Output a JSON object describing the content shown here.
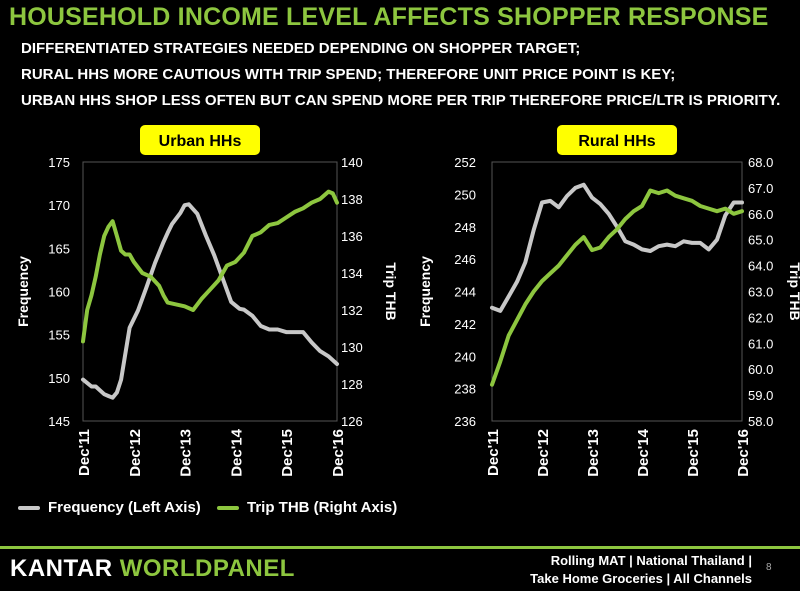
{
  "header": {
    "title": "HOUSEHOLD INCOME LEVEL AFFECTS SHOPPER RESPONSE",
    "lines": [
      "DIFFERENTIATED STRATEGIES NEEDED DEPENDING ON SHOPPER TARGET;",
      "RURAL HHS MORE CAUTIOUS WITH TRIP SPEND; THEREFORE UNIT PRICE POINT IS KEY;",
      "URBAN HHS SHOP LESS OFTEN BUT CAN SPEND MORE PER TRIP THEREFORE PRICE/LTR IS PRIORITY."
    ]
  },
  "colors": {
    "accent": "#8dc63f",
    "frequency": "#c8c8c8",
    "trip": "#8dc63f",
    "badge": "#ffff00"
  },
  "chart_data": [
    {
      "type": "line",
      "title": "Urban HHs",
      "ylabel": "Frequency",
      "y2label": "Trip THB",
      "ylim": [
        145,
        175
      ],
      "yticks": [
        "175",
        "170",
        "165",
        "160",
        "155",
        "150",
        "145"
      ],
      "y2lim": [
        126,
        140
      ],
      "y2ticks": [
        "140",
        "138",
        "136",
        "134",
        "132",
        "130",
        "128",
        "126"
      ],
      "xlim": [
        0,
        60
      ],
      "x_ticks": [
        "Dec'11",
        "Dec'12",
        "Dec'13",
        "Dec'14",
        "Dec'15",
        "Dec'16"
      ],
      "series": [
        {
          "name": "Frequency (Left Axis)",
          "axis": "left",
          "x": [
            0,
            2,
            3,
            5,
            6,
            7,
            8,
            9,
            11,
            13,
            15,
            17,
            19,
            20,
            21,
            23,
            24,
            25,
            27,
            29,
            31,
            33,
            35,
            37,
            38,
            40,
            42,
            44,
            46,
            48,
            50,
            52,
            54,
            56,
            58,
            60
          ],
          "values": [
            149.8,
            149.0,
            149.0,
            148.1,
            147.9,
            147.7,
            148.3,
            149.8,
            155.8,
            157.8,
            160.5,
            163.3,
            165.7,
            166.8,
            167.8,
            169.1,
            170.0,
            170.1,
            169.0,
            166.5,
            164.2,
            161.5,
            158.8,
            158.0,
            157.9,
            157.2,
            156.0,
            155.6,
            155.6,
            155.3,
            155.3,
            155.3,
            154.1,
            153.1,
            152.5,
            151.6
          ]
        },
        {
          "name": "Trip THB (Right Axis)",
          "axis": "right",
          "x": [
            0,
            1,
            2,
            3,
            4,
            5,
            6,
            7,
            8,
            9,
            10,
            11,
            12,
            14,
            16,
            18,
            19,
            20,
            22,
            24,
            26,
            28,
            30,
            32,
            34,
            36,
            38,
            40,
            42,
            44,
            46,
            48,
            50,
            52,
            54,
            56,
            58,
            59,
            60
          ],
          "values": [
            130.3,
            132.0,
            132.8,
            133.8,
            135.0,
            136.0,
            136.5,
            136.8,
            136.0,
            135.2,
            135.0,
            135.0,
            134.6,
            134.0,
            133.8,
            133.3,
            132.8,
            132.4,
            132.3,
            132.2,
            132.0,
            132.6,
            133.1,
            133.6,
            134.4,
            134.6,
            135.1,
            136.0,
            136.2,
            136.6,
            136.7,
            137.0,
            137.3,
            137.5,
            137.8,
            138.0,
            138.4,
            138.3,
            137.8
          ]
        }
      ]
    },
    {
      "type": "line",
      "title": "Rural HHs",
      "ylabel": "Frequency",
      "y2label": "Trip THB",
      "ylim": [
        236,
        252
      ],
      "yticks": [
        "252",
        "250",
        "248",
        "246",
        "244",
        "242",
        "240",
        "238",
        "236"
      ],
      "y2lim": [
        58.0,
        68.0
      ],
      "y2ticks": [
        "68.0",
        "67.0",
        "66.0",
        "65.0",
        "64.0",
        "63.0",
        "62.0",
        "61.0",
        "60.0",
        "59.0",
        "58.0"
      ],
      "xlim": [
        0,
        60
      ],
      "x_ticks": [
        "Dec'11",
        "Dec'12",
        "Dec'13",
        "Dec'14",
        "Dec'15",
        "Dec'16"
      ],
      "series": [
        {
          "name": "Frequency (Left Axis)",
          "axis": "left",
          "x": [
            0,
            2,
            4,
            6,
            8,
            10,
            12,
            14,
            16,
            18,
            20,
            22,
            24,
            26,
            28,
            30,
            32,
            34,
            36,
            38,
            40,
            42,
            44,
            46,
            48,
            50,
            52,
            54,
            56,
            58,
            60
          ],
          "values": [
            243.0,
            242.8,
            243.7,
            244.6,
            245.8,
            247.8,
            249.5,
            249.6,
            249.2,
            249.9,
            250.4,
            250.6,
            249.8,
            249.4,
            248.8,
            248.0,
            247.1,
            246.9,
            246.6,
            246.5,
            246.8,
            246.9,
            246.8,
            247.1,
            247.0,
            247.0,
            246.6,
            247.2,
            248.7,
            249.5,
            249.5
          ]
        },
        {
          "name": "Trip THB (Right Axis)",
          "axis": "right",
          "x": [
            0,
            2,
            4,
            6,
            8,
            10,
            12,
            14,
            16,
            18,
            20,
            22,
            24,
            26,
            28,
            30,
            32,
            34,
            36,
            38,
            40,
            42,
            44,
            46,
            48,
            50,
            52,
            54,
            56,
            58,
            60
          ],
          "values": [
            59.4,
            60.3,
            61.3,
            61.9,
            62.5,
            63.0,
            63.4,
            63.7,
            64.0,
            64.4,
            64.8,
            65.1,
            64.6,
            64.7,
            65.1,
            65.4,
            65.8,
            66.1,
            66.3,
            66.9,
            66.8,
            66.9,
            66.7,
            66.6,
            66.5,
            66.3,
            66.2,
            66.1,
            66.2,
            66.0,
            66.1
          ]
        }
      ]
    }
  ],
  "legend": {
    "frequency": "Frequency (Left Axis)",
    "trip": "Trip THB (Right Axis)"
  },
  "footer": {
    "logo_a": "KANTAR ",
    "logo_b": "WORLDPANEL",
    "line1": "Rolling MAT | National Thailand |",
    "line2": "Take Home Groceries | All Channels",
    "page": "8"
  }
}
